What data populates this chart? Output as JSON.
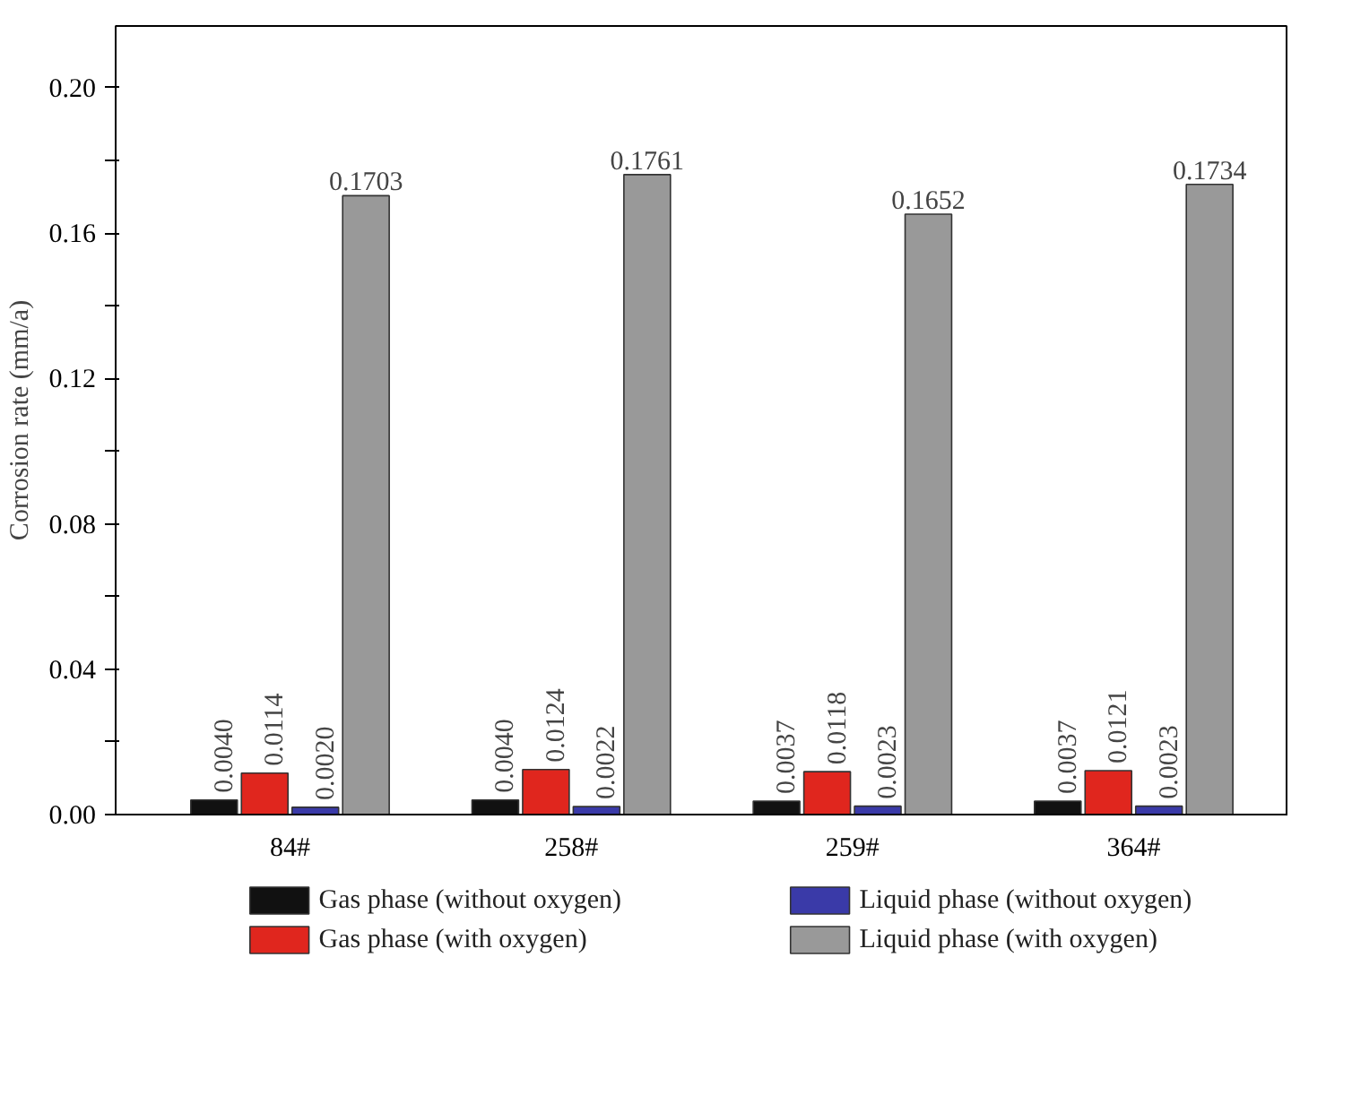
{
  "chart_data": {
    "type": "bar",
    "ylabel": "Corrosion rate (mm/a)",
    "categories": [
      "84#",
      "258#",
      "259#",
      "364#"
    ],
    "series": [
      {
        "name": "Gas phase (without oxygen)",
        "color": "#111111",
        "values": [
          0.004,
          0.004,
          0.0037,
          0.0037
        ],
        "value_labels": [
          "0.0040",
          "0.0040",
          "0.0037",
          "0.0037"
        ]
      },
      {
        "name": "Gas phase (with oxygen)",
        "color": "#e0261e",
        "values": [
          0.0114,
          0.0124,
          0.0118,
          0.0121
        ],
        "value_labels": [
          "0.0114",
          "0.0124",
          "0.0118",
          "0.0121"
        ]
      },
      {
        "name": "Liquid phase (without oxygen)",
        "color": "#3a3aa8",
        "values": [
          0.002,
          0.0022,
          0.0023,
          0.0023
        ],
        "value_labels": [
          "0.0020",
          "0.0022",
          "0.0023",
          "0.0023"
        ]
      },
      {
        "name": "Liquid phase (with oxygen)",
        "color": "#999999",
        "values": [
          0.1703,
          0.1761,
          0.1652,
          0.1734
        ],
        "value_labels": [
          "0.1703",
          "0.1761",
          "0.1652",
          "0.1734"
        ]
      }
    ],
    "ylim": [
      0,
      0.217
    ],
    "yticks": [
      {
        "value": 0,
        "label": "0.00"
      },
      {
        "value": 0.02,
        "label": null
      },
      {
        "value": 0.04,
        "label": "0.04"
      },
      {
        "value": 0.06,
        "label": null
      },
      {
        "value": 0.08,
        "label": "0.08"
      },
      {
        "value": 0.1,
        "label": null
      },
      {
        "value": 0.12,
        "label": "0.12"
      },
      {
        "value": 0.14,
        "label": null
      },
      {
        "value": 0.16,
        "label": "0.16"
      },
      {
        "value": 0.18,
        "label": null
      },
      {
        "value": 0.2,
        "label": "0.20"
      }
    ],
    "grid": false,
    "legend": "bottom"
  }
}
